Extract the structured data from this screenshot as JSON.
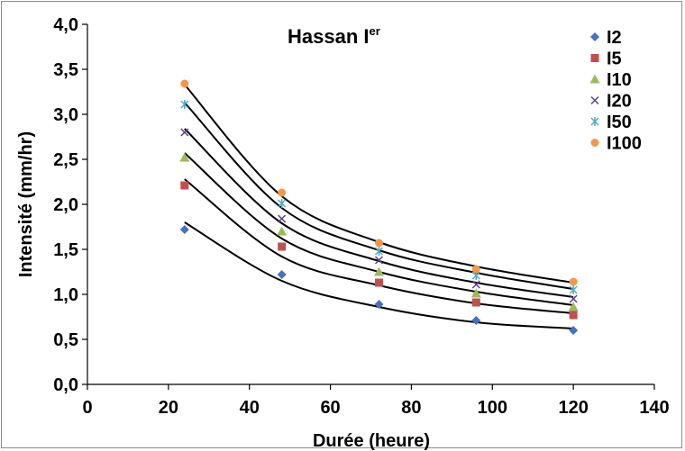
{
  "chart_data": {
    "type": "scatter",
    "title": "Hassan I",
    "title_superscript": "er",
    "xlabel": "Durée (heure)",
    "ylabel": "Intensité (mm/hr)",
    "xlim": [
      0,
      140
    ],
    "ylim": [
      0,
      4
    ],
    "x_ticks": [
      0,
      20,
      40,
      60,
      80,
      100,
      120,
      140
    ],
    "y_ticks": [
      0,
      0.5,
      1,
      1.5,
      2,
      2.5,
      3,
      3.5,
      4
    ],
    "x_tick_labels": [
      "0",
      "20",
      "40",
      "60",
      "80",
      "100",
      "120",
      "140"
    ],
    "y_tick_labels": [
      "0,0",
      "0,5",
      "1,0",
      "1,5",
      "2,0",
      "2,5",
      "3,0",
      "3,5",
      "4,0"
    ],
    "grid": false,
    "legend_position": "top-right",
    "trendline": "power",
    "x": [
      24,
      48,
      72,
      96,
      120
    ],
    "series": [
      {
        "name": "I2",
        "marker": "diamond",
        "color": "#4472c4",
        "values": [
          1.72,
          1.22,
          0.89,
          0.71,
          0.6
        ],
        "fit": [
          1.8,
          1.15,
          0.86,
          0.69,
          0.62
        ]
      },
      {
        "name": "I5",
        "marker": "square",
        "color": "#c0504d",
        "values": [
          2.21,
          1.53,
          1.13,
          0.91,
          0.77
        ],
        "fit": [
          2.28,
          1.42,
          1.1,
          0.9,
          0.79
        ]
      },
      {
        "name": "I10",
        "marker": "triangle",
        "color": "#9bbb59",
        "values": [
          2.52,
          1.7,
          1.25,
          1.01,
          0.86
        ],
        "fit": [
          2.57,
          1.62,
          1.25,
          1.03,
          0.88
        ]
      },
      {
        "name": "I20",
        "marker": "x",
        "color": "#5c3d8f",
        "values": [
          2.8,
          1.84,
          1.38,
          1.11,
          0.95
        ],
        "fit": [
          2.84,
          1.79,
          1.37,
          1.13,
          0.97
        ]
      },
      {
        "name": "I50",
        "marker": "star",
        "color": "#4bacc6",
        "values": [
          3.11,
          2.01,
          1.48,
          1.21,
          1.05
        ],
        "fit": [
          3.13,
          1.96,
          1.49,
          1.24,
          1.06
        ]
      },
      {
        "name": "I100",
        "marker": "circle",
        "color": "#f79646",
        "values": [
          3.34,
          2.13,
          1.57,
          1.28,
          1.14
        ],
        "fit": [
          3.33,
          2.09,
          1.58,
          1.31,
          1.13
        ]
      }
    ]
  }
}
